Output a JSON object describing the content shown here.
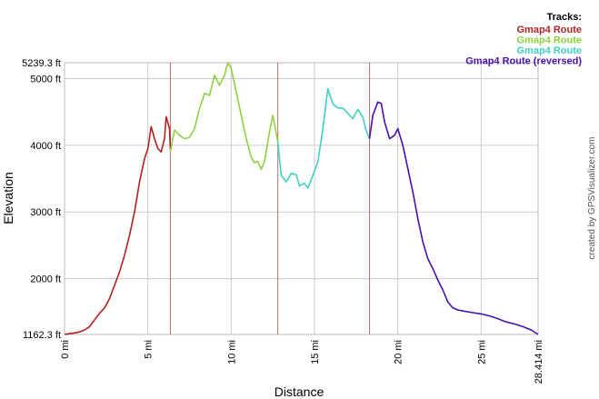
{
  "chart_data": {
    "type": "line",
    "xlabel": "Distance",
    "ylabel": "Elevation",
    "xlim": [
      0,
      28.414
    ],
    "ylim": [
      1162.3,
      5239.3
    ],
    "y_ticks": [
      {
        "value": 1162.3,
        "label": "1162.3 ft"
      },
      {
        "value": 2000,
        "label": "2000 ft"
      },
      {
        "value": 3000,
        "label": "3000 ft"
      },
      {
        "value": 4000,
        "label": "4000 ft"
      },
      {
        "value": 5000,
        "label": "5000 ft"
      },
      {
        "value": 5239.3,
        "label": "5239.3 ft"
      }
    ],
    "x_ticks": [
      {
        "value": 0,
        "label": "0 mi"
      },
      {
        "value": 5,
        "label": "5 mi"
      },
      {
        "value": 10,
        "label": "10 mi"
      },
      {
        "value": 15,
        "label": "15 mi"
      },
      {
        "value": 20,
        "label": "20 mi"
      },
      {
        "value": 25,
        "label": "25 mi"
      },
      {
        "value": 28.414,
        "label": "28.414 mi"
      }
    ],
    "track_boundaries": [
      6.35,
      12.8,
      18.3
    ],
    "grid": true,
    "legend": {
      "title": "Tracks:",
      "placement": "top-right"
    },
    "series": [
      {
        "name": "Gmap4 Route",
        "color": "#b22222",
        "points": [
          [
            0,
            1162
          ],
          [
            0.3,
            1175
          ],
          [
            0.6,
            1185
          ],
          [
            0.9,
            1200
          ],
          [
            1.2,
            1230
          ],
          [
            1.5,
            1280
          ],
          [
            1.8,
            1380
          ],
          [
            2.1,
            1480
          ],
          [
            2.4,
            1560
          ],
          [
            2.7,
            1700
          ],
          [
            3.0,
            1900
          ],
          [
            3.3,
            2100
          ],
          [
            3.6,
            2350
          ],
          [
            3.9,
            2650
          ],
          [
            4.2,
            3000
          ],
          [
            4.5,
            3450
          ],
          [
            4.8,
            3800
          ],
          [
            5.0,
            3950
          ],
          [
            5.2,
            4280
          ],
          [
            5.4,
            4100
          ],
          [
            5.6,
            3950
          ],
          [
            5.8,
            3900
          ],
          [
            6.0,
            4100
          ],
          [
            6.1,
            4430
          ],
          [
            6.3,
            4250
          ],
          [
            6.35,
            3950
          ]
        ]
      },
      {
        "name": "Gmap4 Route",
        "color": "#8fd13f",
        "points": [
          [
            6.35,
            3900
          ],
          [
            6.6,
            4230
          ],
          [
            6.9,
            4150
          ],
          [
            7.2,
            4100
          ],
          [
            7.5,
            4120
          ],
          [
            7.8,
            4250
          ],
          [
            8.1,
            4550
          ],
          [
            8.4,
            4780
          ],
          [
            8.7,
            4750
          ],
          [
            9.0,
            5050
          ],
          [
            9.3,
            4900
          ],
          [
            9.6,
            5050
          ],
          [
            9.8,
            5239
          ],
          [
            10.0,
            5150
          ],
          [
            10.3,
            4800
          ],
          [
            10.6,
            4450
          ],
          [
            10.9,
            4100
          ],
          [
            11.2,
            3820
          ],
          [
            11.4,
            3740
          ],
          [
            11.6,
            3760
          ],
          [
            11.8,
            3640
          ],
          [
            12.0,
            3760
          ],
          [
            12.3,
            4200
          ],
          [
            12.5,
            4450
          ],
          [
            12.8,
            4050
          ]
        ]
      },
      {
        "name": "Gmap4 Route",
        "color": "#3fd1c4",
        "points": [
          [
            12.8,
            4050
          ],
          [
            13.0,
            3550
          ],
          [
            13.3,
            3450
          ],
          [
            13.6,
            3580
          ],
          [
            13.9,
            3560
          ],
          [
            14.1,
            3390
          ],
          [
            14.4,
            3430
          ],
          [
            14.6,
            3360
          ],
          [
            14.9,
            3550
          ],
          [
            15.2,
            3750
          ],
          [
            15.5,
            4250
          ],
          [
            15.8,
            4850
          ],
          [
            16.1,
            4620
          ],
          [
            16.4,
            4560
          ],
          [
            16.7,
            4560
          ],
          [
            17.0,
            4480
          ],
          [
            17.3,
            4400
          ],
          [
            17.6,
            4540
          ],
          [
            17.9,
            4420
          ],
          [
            18.1,
            4220
          ],
          [
            18.3,
            4100
          ]
        ]
      },
      {
        "name": "Gmap4 Route (reversed)",
        "color": "#4b0fa8",
        "points": [
          [
            18.3,
            4100
          ],
          [
            18.5,
            4450
          ],
          [
            18.8,
            4650
          ],
          [
            19.0,
            4630
          ],
          [
            19.2,
            4350
          ],
          [
            19.5,
            4100
          ],
          [
            19.8,
            4150
          ],
          [
            20.0,
            4250
          ],
          [
            20.3,
            4000
          ],
          [
            20.6,
            3650
          ],
          [
            20.9,
            3300
          ],
          [
            21.2,
            2900
          ],
          [
            21.5,
            2550
          ],
          [
            21.8,
            2300
          ],
          [
            22.1,
            2150
          ],
          [
            22.4,
            1980
          ],
          [
            22.7,
            1830
          ],
          [
            23.0,
            1650
          ],
          [
            23.3,
            1560
          ],
          [
            23.6,
            1530
          ],
          [
            24.0,
            1510
          ],
          [
            24.5,
            1490
          ],
          [
            25.0,
            1470
          ],
          [
            25.5,
            1440
          ],
          [
            26.0,
            1400
          ],
          [
            26.5,
            1350
          ],
          [
            27.0,
            1320
          ],
          [
            27.5,
            1280
          ],
          [
            28.0,
            1230
          ],
          [
            28.414,
            1162
          ]
        ]
      }
    ],
    "credit": "created by GPSVisualizer.com"
  }
}
